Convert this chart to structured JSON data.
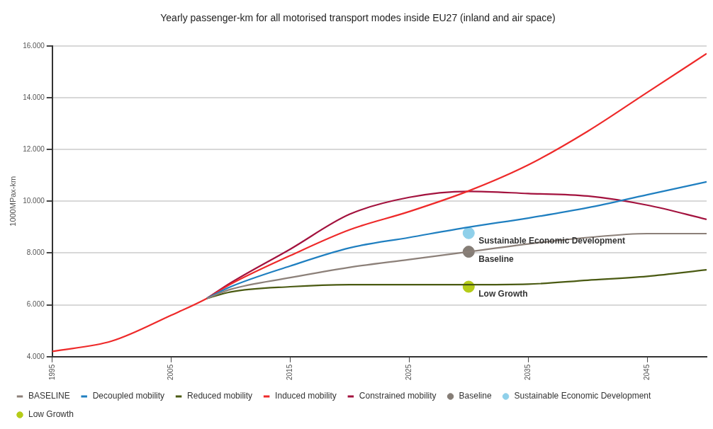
{
  "chart_data": {
    "type": "line",
    "title": "Yearly passenger-km for all motorised transport modes inside EU27 (inland and air space)",
    "ylabel": "1000MPax-km",
    "xlim": [
      1995,
      2050
    ],
    "xticks": [
      1995,
      2005,
      2015,
      2025,
      2035,
      2045
    ],
    "ylim": [
      4000,
      16000
    ],
    "yticks": [
      {
        "value": 4000,
        "label": "4.000"
      },
      {
        "value": 6000,
        "label": "6.000"
      },
      {
        "value": 8000,
        "label": "8.000"
      },
      {
        "value": 10000,
        "label": "10.000"
      },
      {
        "value": 12000,
        "label": "12.000"
      },
      {
        "value": 14000,
        "label": "14.000"
      },
      {
        "value": 16000,
        "label": "16.000"
      }
    ],
    "grid": "y",
    "legend": "bottom",
    "line_style": "solid",
    "x": [
      1995,
      2000,
      2005,
      2008,
      2010,
      2015,
      2020,
      2025,
      2030,
      2035,
      2040,
      2045,
      2050
    ],
    "series": [
      {
        "name": "BASELINE",
        "color": "#8c8079",
        "values": [
          null,
          null,
          null,
          6250,
          6600,
          7050,
          7450,
          7750,
          8050,
          8350,
          8600,
          8750,
          8750
        ]
      },
      {
        "name": "Decoupled mobility",
        "color": "#1f7fc0",
        "values": [
          null,
          null,
          null,
          6250,
          6700,
          7500,
          8200,
          8600,
          9000,
          9350,
          9750,
          10250,
          10750
        ]
      },
      {
        "name": "Reduced mobility",
        "color": "#4a5a12",
        "values": [
          null,
          null,
          null,
          6250,
          6500,
          6700,
          6780,
          6780,
          6780,
          6800,
          6950,
          7100,
          7350
        ]
      },
      {
        "name": "Induced mobility",
        "color": "#ee2a2a",
        "values": [
          4200,
          4600,
          5600,
          6250,
          6800,
          7900,
          8900,
          9600,
          10400,
          11400,
          12700,
          14200,
          15700
        ]
      },
      {
        "name": "Constrained mobility",
        "color": "#a3123e",
        "values": [
          null,
          null,
          null,
          6250,
          6850,
          8150,
          9500,
          10150,
          10380,
          10300,
          10200,
          9850,
          9300
        ]
      },
      {
        "name": "Baseline",
        "type": "scatter",
        "marker": "circle",
        "color": "#857d76",
        "values": [
          null,
          null,
          null,
          null,
          null,
          null,
          null,
          null,
          8050,
          null,
          null,
          null,
          null
        ]
      },
      {
        "name": "Sustainable Economic Development",
        "type": "scatter",
        "marker": "circle",
        "color": "#8fd0ea",
        "values": [
          null,
          null,
          null,
          null,
          null,
          null,
          null,
          null,
          8770,
          null,
          null,
          null,
          null
        ]
      },
      {
        "name": "Low Growth",
        "type": "scatter",
        "marker": "circle",
        "color": "#b5cc18",
        "values": [
          null,
          null,
          null,
          null,
          null,
          null,
          null,
          null,
          6700,
          null,
          null,
          null,
          null
        ]
      }
    ]
  }
}
